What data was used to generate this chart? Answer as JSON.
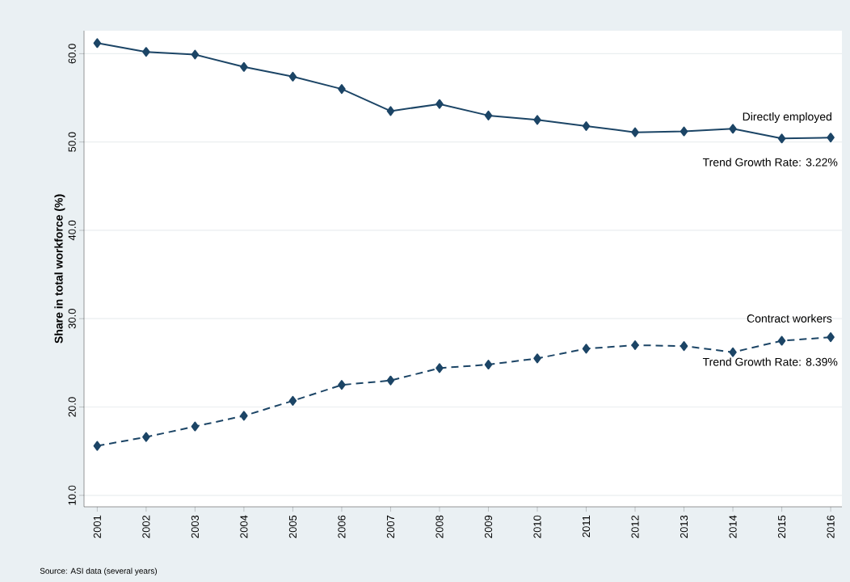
{
  "chart_data": {
    "type": "line",
    "ylabel": "Share in total workforce (%)",
    "categories": [
      "2001",
      "2002",
      "2003",
      "2004",
      "2005",
      "2006",
      "2007",
      "2008",
      "2009",
      "2010",
      "2011",
      "2012",
      "2013",
      "2014",
      "2015",
      "2016"
    ],
    "series": [
      {
        "name": "Directly employed",
        "color": "#1c4566",
        "line_style": "solid",
        "values": [
          61.2,
          60.2,
          59.9,
          58.5,
          57.4,
          56.0,
          53.5,
          54.3,
          53.0,
          52.5,
          51.8,
          51.1,
          51.2,
          51.5,
          50.4,
          50.5
        ]
      },
      {
        "name": "Contract workers",
        "color": "#1c4566",
        "line_style": "dashed",
        "values": [
          15.6,
          16.6,
          17.8,
          19.0,
          20.7,
          22.5,
          23.0,
          24.4,
          24.8,
          25.5,
          26.6,
          27.0,
          26.9,
          26.2,
          27.5,
          27.9
        ]
      }
    ],
    "ylim": [
      8.7,
      62.6
    ],
    "yticks": [
      {
        "value": 10,
        "label": "10.0"
      },
      {
        "value": 20,
        "label": "20.0"
      },
      {
        "value": 30,
        "label": "30.0"
      },
      {
        "value": 40,
        "label": "40.0"
      },
      {
        "value": 50,
        "label": "50.0"
      },
      {
        "value": 60,
        "label": "60.0"
      }
    ],
    "grid": "y",
    "marker": "diamond",
    "annotations": [
      "Trend Growth Rate: 3.22%",
      "Trend Growth Rate: 8.39%",
      "Source: ASI data (several years)"
    ]
  }
}
